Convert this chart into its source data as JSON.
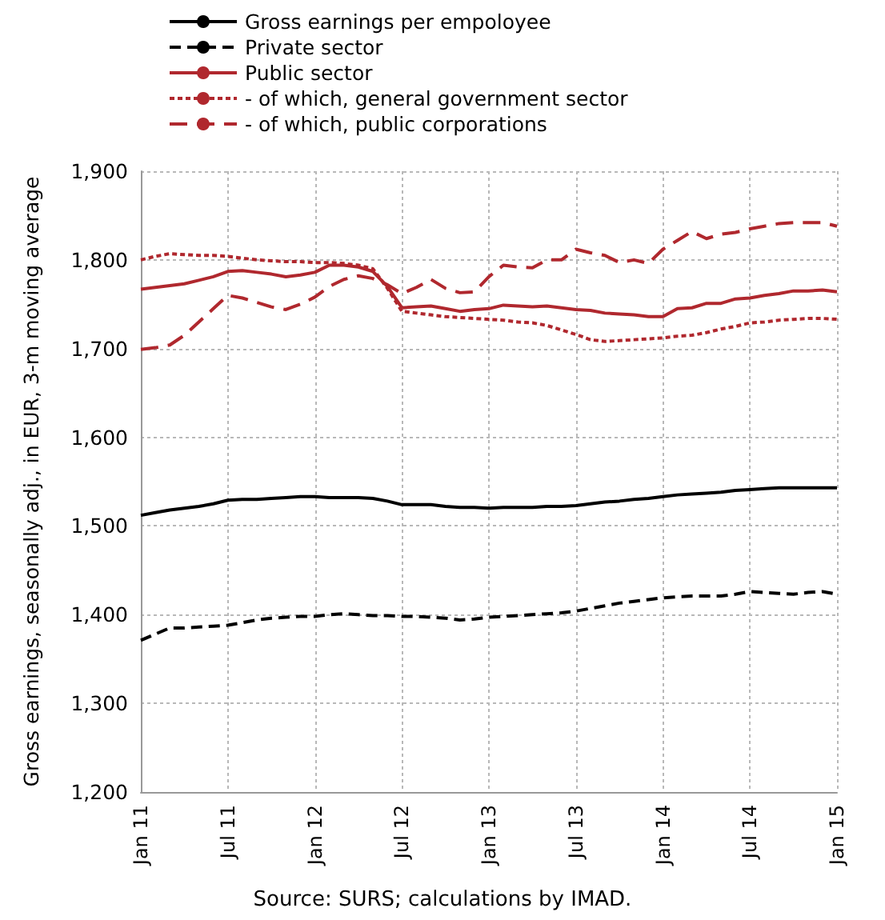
{
  "chart_data": {
    "type": "line",
    "ylabel": "Gross earnings, seasonally adj., in EUR, 3-m moving average",
    "categories": [
      "Jan 11",
      null,
      null,
      null,
      null,
      null,
      "Jul 11",
      null,
      null,
      null,
      null,
      null,
      "Jan 12",
      null,
      null,
      null,
      null,
      null,
      "Jul 12",
      null,
      null,
      null,
      null,
      null,
      "Jan 13",
      null,
      null,
      null,
      null,
      null,
      "Jul 13",
      null,
      null,
      null,
      null,
      null,
      "Jan 14",
      null,
      null,
      null,
      null,
      null,
      "Jul 14",
      null,
      null,
      null,
      null,
      null,
      "Jan 15"
    ],
    "series": [
      {
        "name": "Gross earnings per empoloyee",
        "color": "#000000",
        "line_style": "solid",
        "values": [
          1512,
          1515,
          1518,
          1520,
          1522,
          1525,
          1529,
          1530,
          1530,
          1531,
          1532,
          1533,
          1533,
          1532,
          1532,
          1532,
          1531,
          1528,
          1524,
          1524,
          1524,
          1522,
          1521,
          1521,
          1520,
          1521,
          1521,
          1521,
          1522,
          1522,
          1523,
          1525,
          1527,
          1528,
          1530,
          1531,
          1533,
          1535,
          1536,
          1537,
          1538,
          1540,
          1541,
          1542,
          1543,
          1543,
          1543,
          1543,
          1543
        ]
      },
      {
        "name": "Private sector",
        "color": "#000000",
        "line_style": "dashed",
        "values": [
          1371,
          1378,
          1385,
          1385,
          1386,
          1387,
          1388,
          1391,
          1394,
          1396,
          1397,
          1398,
          1398,
          1400,
          1401,
          1400,
          1399,
          1399,
          1398,
          1398,
          1397,
          1396,
          1394,
          1395,
          1397,
          1398,
          1399,
          1400,
          1401,
          1402,
          1404,
          1407,
          1410,
          1413,
          1415,
          1417,
          1419,
          1420,
          1421,
          1421,
          1421,
          1423,
          1426,
          1425,
          1424,
          1423,
          1425,
          1426,
          1423
        ]
      },
      {
        "name": "Public sector",
        "color": "#b0282e",
        "line_style": "solid",
        "values": [
          1767,
          1769,
          1771,
          1773,
          1777,
          1781,
          1787,
          1788,
          1786,
          1784,
          1781,
          1783,
          1786,
          1794,
          1794,
          1792,
          1787,
          1770,
          1746,
          1747,
          1748,
          1745,
          1742,
          1744,
          1745,
          1749,
          1748,
          1747,
          1748,
          1746,
          1744,
          1743,
          1740,
          1739,
          1738,
          1736,
          1736,
          1745,
          1746,
          1751,
          1751,
          1756,
          1757,
          1760,
          1762,
          1765,
          1765,
          1766,
          1764
        ]
      },
      {
        "name": "- of which, general government sector",
        "color": "#b0282e",
        "line_style": "dotted",
        "values": [
          1800,
          1804,
          1807,
          1806,
          1805,
          1805,
          1804,
          1802,
          1800,
          1799,
          1798,
          1798,
          1797,
          1797,
          1796,
          1794,
          1790,
          1768,
          1742,
          1740,
          1738,
          1736,
          1735,
          1734,
          1733,
          1732,
          1730,
          1729,
          1726,
          1721,
          1716,
          1710,
          1708,
          1709,
          1710,
          1711,
          1712,
          1714,
          1715,
          1718,
          1722,
          1725,
          1729,
          1730,
          1732,
          1733,
          1734,
          1734,
          1733
        ]
      },
      {
        "name": "- of which, public corporations",
        "color": "#b0282e",
        "line_style": "dashed",
        "values": [
          1699,
          1701,
          1704,
          1715,
          1730,
          1745,
          1760,
          1757,
          1752,
          1747,
          1744,
          1750,
          1758,
          1770,
          1778,
          1782,
          1779,
          1772,
          1762,
          1769,
          1778,
          1768,
          1763,
          1764,
          1781,
          1794,
          1792,
          1791,
          1800,
          1800,
          1812,
          1808,
          1805,
          1797,
          1800,
          1796,
          1812,
          1822,
          1832,
          1824,
          1829,
          1831,
          1835,
          1838,
          1841,
          1842,
          1842,
          1842,
          1838
        ]
      }
    ],
    "ylim": [
      1200,
      1900
    ],
    "yticks": [
      {
        "value": 1200,
        "label": "1,200"
      },
      {
        "value": 1300,
        "label": "1,300"
      },
      {
        "value": 1400,
        "label": "1,400"
      },
      {
        "value": 1500,
        "label": "1,500"
      },
      {
        "value": 1600,
        "label": "1,600"
      },
      {
        "value": 1700,
        "label": "1,700"
      },
      {
        "value": 1800,
        "label": "1,800"
      },
      {
        "value": 1900,
        "label": "1,900"
      }
    ],
    "grid": true,
    "legend": "top",
    "marker": "none",
    "annotations": [
      "Source: SURS; calculations by IMAD."
    ]
  }
}
